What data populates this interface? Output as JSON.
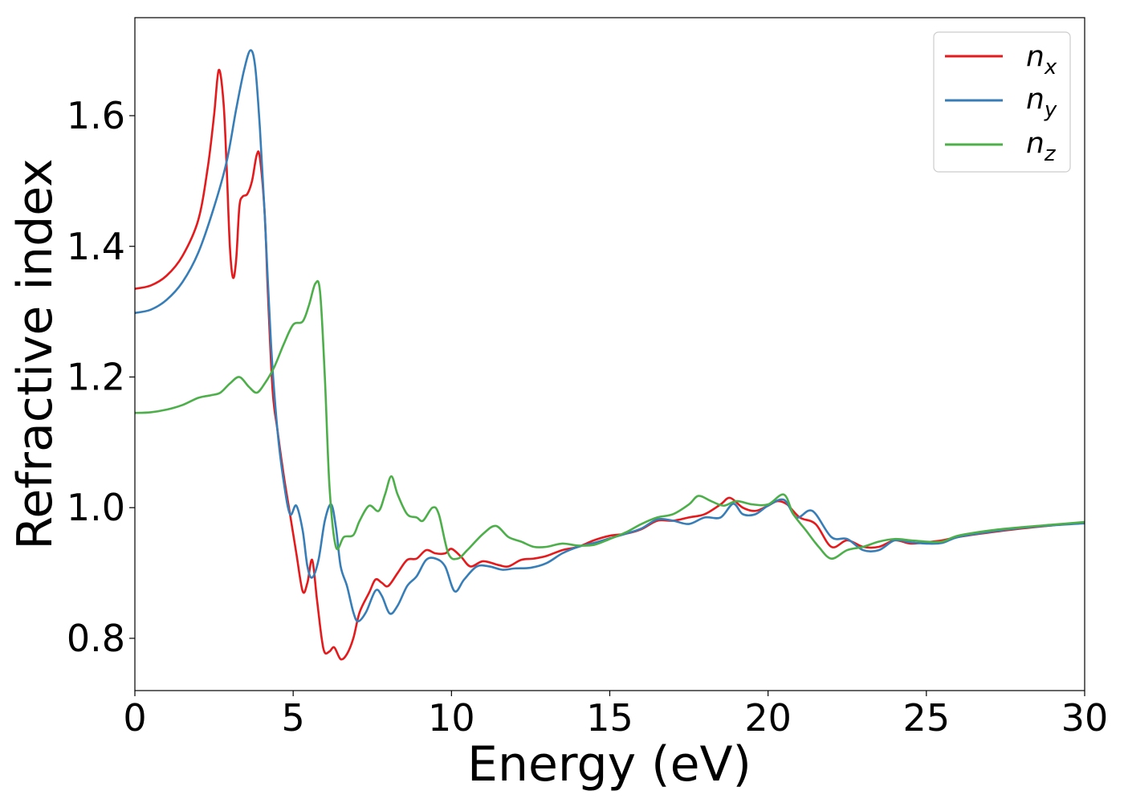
{
  "chart_data": {
    "type": "line",
    "title": "",
    "xlabel": "Energy (eV)",
    "ylabel": "Refractive index",
    "xlim": [
      0,
      30
    ],
    "ylim": [
      0.72,
      1.75
    ],
    "xticks": [
      0,
      5,
      10,
      15,
      20,
      25,
      30
    ],
    "xtick_labels": [
      "0",
      "5",
      "10",
      "15",
      "20",
      "25",
      "30"
    ],
    "yticks": [
      0.8,
      1.0,
      1.2,
      1.4,
      1.6
    ],
    "ytick_labels": [
      "0.8",
      "1.0",
      "1.2",
      "1.4",
      "1.6"
    ],
    "grid": false,
    "legend_position": "top-right",
    "series": [
      {
        "name": "n_x",
        "label_base": "n",
        "label_sub": "x",
        "color": "#e41a1c",
        "points": [
          [
            0,
            1.335
          ],
          [
            0.5,
            1.34
          ],
          [
            1.0,
            1.355
          ],
          [
            1.5,
            1.385
          ],
          [
            2.0,
            1.44
          ],
          [
            2.3,
            1.52
          ],
          [
            2.5,
            1.6
          ],
          [
            2.65,
            1.67
          ],
          [
            2.8,
            1.62
          ],
          [
            2.9,
            1.52
          ],
          [
            3.0,
            1.4
          ],
          [
            3.1,
            1.352
          ],
          [
            3.2,
            1.38
          ],
          [
            3.3,
            1.46
          ],
          [
            3.4,
            1.476
          ],
          [
            3.55,
            1.48
          ],
          [
            3.7,
            1.5
          ],
          [
            3.85,
            1.54
          ],
          [
            3.95,
            1.535
          ],
          [
            4.1,
            1.45
          ],
          [
            4.2,
            1.33
          ],
          [
            4.35,
            1.18
          ],
          [
            4.5,
            1.12
          ],
          [
            4.7,
            1.05
          ],
          [
            4.9,
            0.99
          ],
          [
            5.1,
            0.93
          ],
          [
            5.3,
            0.872
          ],
          [
            5.45,
            0.885
          ],
          [
            5.6,
            0.92
          ],
          [
            5.75,
            0.86
          ],
          [
            5.9,
            0.8
          ],
          [
            6.0,
            0.778
          ],
          [
            6.15,
            0.78
          ],
          [
            6.3,
            0.786
          ],
          [
            6.5,
            0.768
          ],
          [
            6.7,
            0.776
          ],
          [
            6.9,
            0.8
          ],
          [
            7.1,
            0.84
          ],
          [
            7.4,
            0.87
          ],
          [
            7.6,
            0.89
          ],
          [
            7.8,
            0.885
          ],
          [
            8.0,
            0.88
          ],
          [
            8.3,
            0.9
          ],
          [
            8.6,
            0.92
          ],
          [
            8.9,
            0.922
          ],
          [
            9.2,
            0.935
          ],
          [
            9.5,
            0.93
          ],
          [
            9.8,
            0.93
          ],
          [
            10.0,
            0.937
          ],
          [
            10.3,
            0.925
          ],
          [
            10.6,
            0.91
          ],
          [
            11.0,
            0.918
          ],
          [
            11.5,
            0.912
          ],
          [
            11.8,
            0.91
          ],
          [
            12.2,
            0.92
          ],
          [
            12.6,
            0.922
          ],
          [
            13.0,
            0.926
          ],
          [
            13.5,
            0.935
          ],
          [
            14.0,
            0.94
          ],
          [
            14.5,
            0.95
          ],
          [
            15.0,
            0.957
          ],
          [
            15.5,
            0.96
          ],
          [
            16.0,
            0.967
          ],
          [
            16.5,
            0.98
          ],
          [
            17.0,
            0.98
          ],
          [
            17.5,
            0.985
          ],
          [
            18.0,
            0.99
          ],
          [
            18.5,
            1.005
          ],
          [
            18.8,
            1.015
          ],
          [
            19.2,
            1.0
          ],
          [
            19.6,
            0.995
          ],
          [
            20.0,
            1.003
          ],
          [
            20.3,
            1.01
          ],
          [
            20.6,
            1.005
          ],
          [
            21.0,
            0.985
          ],
          [
            21.5,
            0.975
          ],
          [
            22.0,
            0.94
          ],
          [
            22.5,
            0.95
          ],
          [
            23.0,
            0.94
          ],
          [
            23.5,
            0.94
          ],
          [
            24.0,
            0.95
          ],
          [
            24.5,
            0.945
          ],
          [
            25.0,
            0.947
          ],
          [
            25.5,
            0.95
          ],
          [
            26.0,
            0.955
          ],
          [
            27.0,
            0.962
          ],
          [
            28.0,
            0.968
          ],
          [
            29.0,
            0.973
          ],
          [
            30.0,
            0.977
          ]
        ]
      },
      {
        "name": "n_y",
        "label_base": "n",
        "label_sub": "y",
        "color": "#377eb8",
        "points": [
          [
            0,
            1.298
          ],
          [
            0.5,
            1.303
          ],
          [
            1.0,
            1.318
          ],
          [
            1.5,
            1.345
          ],
          [
            2.0,
            1.39
          ],
          [
            2.5,
            1.46
          ],
          [
            2.9,
            1.53
          ],
          [
            3.2,
            1.61
          ],
          [
            3.45,
            1.67
          ],
          [
            3.65,
            1.7
          ],
          [
            3.8,
            1.675
          ],
          [
            3.95,
            1.58
          ],
          [
            4.1,
            1.45
          ],
          [
            4.3,
            1.25
          ],
          [
            4.5,
            1.12
          ],
          [
            4.7,
            1.04
          ],
          [
            4.9,
            0.99
          ],
          [
            5.1,
            1.003
          ],
          [
            5.3,
            0.965
          ],
          [
            5.45,
            0.91
          ],
          [
            5.6,
            0.893
          ],
          [
            5.8,
            0.92
          ],
          [
            6.0,
            0.98
          ],
          [
            6.2,
            1.005
          ],
          [
            6.35,
            0.97
          ],
          [
            6.5,
            0.91
          ],
          [
            6.7,
            0.88
          ],
          [
            6.9,
            0.84
          ],
          [
            7.05,
            0.826
          ],
          [
            7.3,
            0.84
          ],
          [
            7.6,
            0.873
          ],
          [
            7.8,
            0.865
          ],
          [
            8.05,
            0.838
          ],
          [
            8.3,
            0.85
          ],
          [
            8.6,
            0.88
          ],
          [
            8.9,
            0.895
          ],
          [
            9.2,
            0.92
          ],
          [
            9.5,
            0.922
          ],
          [
            9.8,
            0.91
          ],
          [
            10.1,
            0.872
          ],
          [
            10.4,
            0.89
          ],
          [
            10.8,
            0.91
          ],
          [
            11.2,
            0.91
          ],
          [
            11.6,
            0.905
          ],
          [
            12.0,
            0.907
          ],
          [
            12.5,
            0.908
          ],
          [
            13.0,
            0.915
          ],
          [
            13.5,
            0.93
          ],
          [
            14.0,
            0.94
          ],
          [
            14.5,
            0.946
          ],
          [
            15.0,
            0.953
          ],
          [
            15.5,
            0.96
          ],
          [
            16.0,
            0.968
          ],
          [
            16.5,
            0.982
          ],
          [
            17.0,
            0.98
          ],
          [
            17.5,
            0.975
          ],
          [
            18.0,
            0.985
          ],
          [
            18.5,
            0.985
          ],
          [
            18.9,
            1.006
          ],
          [
            19.2,
            0.99
          ],
          [
            19.6,
            0.99
          ],
          [
            20.0,
            1.003
          ],
          [
            20.5,
            1.012
          ],
          [
            20.9,
            0.985
          ],
          [
            21.4,
            0.995
          ],
          [
            22.0,
            0.955
          ],
          [
            22.5,
            0.952
          ],
          [
            23.0,
            0.935
          ],
          [
            23.5,
            0.935
          ],
          [
            24.0,
            0.95
          ],
          [
            24.5,
            0.947
          ],
          [
            25.0,
            0.945
          ],
          [
            25.5,
            0.946
          ],
          [
            26.0,
            0.955
          ],
          [
            27.0,
            0.963
          ],
          [
            28.0,
            0.969
          ],
          [
            29.0,
            0.973
          ],
          [
            30.0,
            0.976
          ]
        ]
      },
      {
        "name": "n_z",
        "label_base": "n",
        "label_sub": "z",
        "color": "#4daf4a",
        "points": [
          [
            0,
            1.145
          ],
          [
            0.5,
            1.146
          ],
          [
            1.0,
            1.15
          ],
          [
            1.5,
            1.157
          ],
          [
            2.0,
            1.168
          ],
          [
            2.4,
            1.172
          ],
          [
            2.7,
            1.176
          ],
          [
            3.0,
            1.19
          ],
          [
            3.3,
            1.2
          ],
          [
            3.6,
            1.185
          ],
          [
            3.85,
            1.176
          ],
          [
            4.1,
            1.19
          ],
          [
            4.4,
            1.215
          ],
          [
            4.7,
            1.25
          ],
          [
            5.0,
            1.28
          ],
          [
            5.3,
            1.285
          ],
          [
            5.5,
            1.31
          ],
          [
            5.7,
            1.343
          ],
          [
            5.85,
            1.33
          ],
          [
            6.0,
            1.2
          ],
          [
            6.15,
            1.03
          ],
          [
            6.35,
            0.94
          ],
          [
            6.6,
            0.955
          ],
          [
            6.9,
            0.958
          ],
          [
            7.1,
            0.98
          ],
          [
            7.4,
            1.003
          ],
          [
            7.7,
            0.995
          ],
          [
            7.9,
            1.02
          ],
          [
            8.1,
            1.048
          ],
          [
            8.3,
            1.02
          ],
          [
            8.6,
            0.99
          ],
          [
            8.9,
            0.985
          ],
          [
            9.1,
            0.98
          ],
          [
            9.4,
            1.0
          ],
          [
            9.6,
            0.99
          ],
          [
            9.9,
            0.93
          ],
          [
            10.2,
            0.922
          ],
          [
            10.5,
            0.935
          ],
          [
            11.0,
            0.96
          ],
          [
            11.4,
            0.972
          ],
          [
            11.8,
            0.955
          ],
          [
            12.2,
            0.948
          ],
          [
            12.6,
            0.94
          ],
          [
            13.0,
            0.94
          ],
          [
            13.5,
            0.945
          ],
          [
            14.0,
            0.942
          ],
          [
            14.5,
            0.943
          ],
          [
            15.0,
            0.952
          ],
          [
            15.5,
            0.962
          ],
          [
            16.0,
            0.975
          ],
          [
            16.5,
            0.985
          ],
          [
            17.0,
            0.99
          ],
          [
            17.5,
            1.005
          ],
          [
            17.8,
            1.018
          ],
          [
            18.2,
            1.01
          ],
          [
            18.6,
            1.003
          ],
          [
            19.0,
            1.01
          ],
          [
            19.5,
            1.005
          ],
          [
            20.0,
            1.005
          ],
          [
            20.5,
            1.02
          ],
          [
            20.8,
            0.99
          ],
          [
            21.2,
            0.965
          ],
          [
            21.6,
            0.94
          ],
          [
            22.0,
            0.922
          ],
          [
            22.5,
            0.935
          ],
          [
            23.0,
            0.94
          ],
          [
            23.5,
            0.948
          ],
          [
            24.0,
            0.952
          ],
          [
            24.5,
            0.95
          ],
          [
            25.0,
            0.948
          ],
          [
            25.5,
            0.948
          ],
          [
            26.0,
            0.957
          ],
          [
            27.0,
            0.965
          ],
          [
            28.0,
            0.97
          ],
          [
            29.0,
            0.974
          ],
          [
            30.0,
            0.978
          ]
        ]
      }
    ]
  }
}
